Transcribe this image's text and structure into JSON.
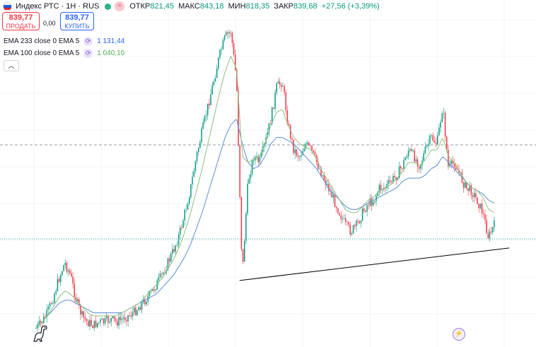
{
  "header": {
    "symbol": "Индекс РТС · 1Н · RUS",
    "ohlc": [
      {
        "label": "ОТКР",
        "value": "821,45"
      },
      {
        "label": "МАКС",
        "value": "843,18"
      },
      {
        "label": "МИН",
        "value": "818,35"
      },
      {
        "label": "ЗАКР",
        "value": "839,68"
      }
    ],
    "change": "+27,56 (+3,39%)"
  },
  "trade": {
    "sell_price": "839,77",
    "sell_label": "ПРОДАТЬ",
    "spread": "0,00",
    "buy_price": "839,77",
    "buy_label": "КУПИТЬ"
  },
  "indicators": [
    {
      "name": "EMA 233 close 0 EMA 5",
      "value": "1 131,44",
      "color": "#5b8fd6"
    },
    {
      "name": "EMA 100 close 0 EMA 5",
      "value": "1 040,10",
      "color": "#8fbf7a"
    }
  ],
  "collapse_icon": "chevron-up-icon",
  "colors": {
    "up": "#089981",
    "down": "#f23645",
    "ema233": "#5b8fd6",
    "ema100": "#8fbf7a",
    "trendline": "#000000"
  },
  "chart_data": {
    "type": "candlestick",
    "trendline": {
      "from": {
        "x": 0.447,
        "y": 0.183
      },
      "to": {
        "x": 0.95,
        "y": 0.287
      }
    },
    "close_profile": [
      0.03,
      0.05,
      0.08,
      0.13,
      0.19,
      0.24,
      0.2,
      0.12,
      0.07,
      0.05,
      0.04,
      0.05,
      0.05,
      0.06,
      0.05,
      0.06,
      0.07,
      0.08,
      0.1,
      0.12,
      0.14,
      0.17,
      0.2,
      0.24,
      0.28,
      0.33,
      0.4,
      0.48,
      0.58,
      0.66,
      0.74,
      0.82,
      0.9,
      0.96,
      0.98,
      0.82,
      0.2,
      0.5,
      0.58,
      0.56,
      0.62,
      0.7,
      0.8,
      0.82,
      0.68,
      0.6,
      0.58,
      0.62,
      0.6,
      0.56,
      0.52,
      0.48,
      0.44,
      0.4,
      0.36,
      0.34,
      0.36,
      0.4,
      0.43,
      0.44,
      0.48,
      0.48,
      0.5,
      0.52,
      0.55,
      0.6,
      0.58,
      0.55,
      0.6,
      0.64,
      0.62,
      0.74,
      0.54,
      0.56,
      0.52,
      0.48,
      0.47,
      0.44,
      0.4,
      0.32,
      0.36
    ],
    "ema233_profile": [
      0.03,
      0.05,
      0.07,
      0.09,
      0.11,
      0.12,
      0.12,
      0.11,
      0.1,
      0.09,
      0.08,
      0.08,
      0.08,
      0.08,
      0.08,
      0.08,
      0.09,
      0.1,
      0.11,
      0.12,
      0.13,
      0.14,
      0.16,
      0.18,
      0.2,
      0.23,
      0.26,
      0.3,
      0.35,
      0.4,
      0.46,
      0.52,
      0.58,
      0.64,
      0.68,
      0.7,
      0.62,
      0.56,
      0.54,
      0.55,
      0.58,
      0.62,
      0.64,
      0.64,
      0.63,
      0.62,
      0.6,
      0.58,
      0.56,
      0.54,
      0.51,
      0.48,
      0.46,
      0.44,
      0.42,
      0.41,
      0.41,
      0.42,
      0.43,
      0.44,
      0.45,
      0.46,
      0.47,
      0.48,
      0.5,
      0.51,
      0.51,
      0.51,
      0.52,
      0.54,
      0.55,
      0.58,
      0.56,
      0.54,
      0.52,
      0.5,
      0.48,
      0.47,
      0.46,
      0.44,
      0.43
    ],
    "ema100_profile": [
      0.03,
      0.05,
      0.07,
      0.1,
      0.13,
      0.15,
      0.14,
      0.12,
      0.1,
      0.08,
      0.07,
      0.07,
      0.07,
      0.07,
      0.07,
      0.08,
      0.09,
      0.1,
      0.11,
      0.13,
      0.15,
      0.17,
      0.19,
      0.22,
      0.25,
      0.29,
      0.34,
      0.4,
      0.47,
      0.54,
      0.62,
      0.7,
      0.78,
      0.85,
      0.9,
      0.86,
      0.58,
      0.56,
      0.57,
      0.58,
      0.62,
      0.68,
      0.72,
      0.73,
      0.68,
      0.64,
      0.62,
      0.61,
      0.6,
      0.57,
      0.53,
      0.5,
      0.47,
      0.44,
      0.41,
      0.4,
      0.4,
      0.42,
      0.44,
      0.45,
      0.47,
      0.48,
      0.49,
      0.51,
      0.53,
      0.56,
      0.56,
      0.55,
      0.57,
      0.6,
      0.6,
      0.64,
      0.58,
      0.56,
      0.53,
      0.5,
      0.48,
      0.47,
      0.45,
      0.41,
      0.4
    ]
  }
}
